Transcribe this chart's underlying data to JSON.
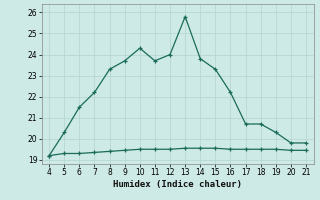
{
  "xlabel": "Humidex (Indice chaleur)",
  "x": [
    4,
    5,
    6,
    7,
    8,
    9,
    10,
    11,
    12,
    13,
    14,
    15,
    16,
    17,
    18,
    19,
    20,
    21
  ],
  "y_upper": [
    19.2,
    20.3,
    21.5,
    22.2,
    23.3,
    23.7,
    24.3,
    23.7,
    24.0,
    25.8,
    23.8,
    23.3,
    22.2,
    20.7,
    20.7,
    20.3,
    19.8,
    19.8
  ],
  "y_lower": [
    19.2,
    19.3,
    19.3,
    19.35,
    19.4,
    19.45,
    19.5,
    19.5,
    19.5,
    19.55,
    19.55,
    19.55,
    19.5,
    19.5,
    19.5,
    19.5,
    19.45,
    19.45
  ],
  "line_color": "#1a6b5a",
  "bg_color": "#cdeae6",
  "grid_color": "#b8d8d4",
  "xlim": [
    3.5,
    21.5
  ],
  "ylim": [
    18.8,
    26.4
  ],
  "yticks": [
    19,
    20,
    21,
    22,
    23,
    24,
    25,
    26
  ],
  "xticks": [
    4,
    5,
    6,
    7,
    8,
    9,
    10,
    11,
    12,
    13,
    14,
    15,
    16,
    17,
    18,
    19,
    20,
    21
  ]
}
